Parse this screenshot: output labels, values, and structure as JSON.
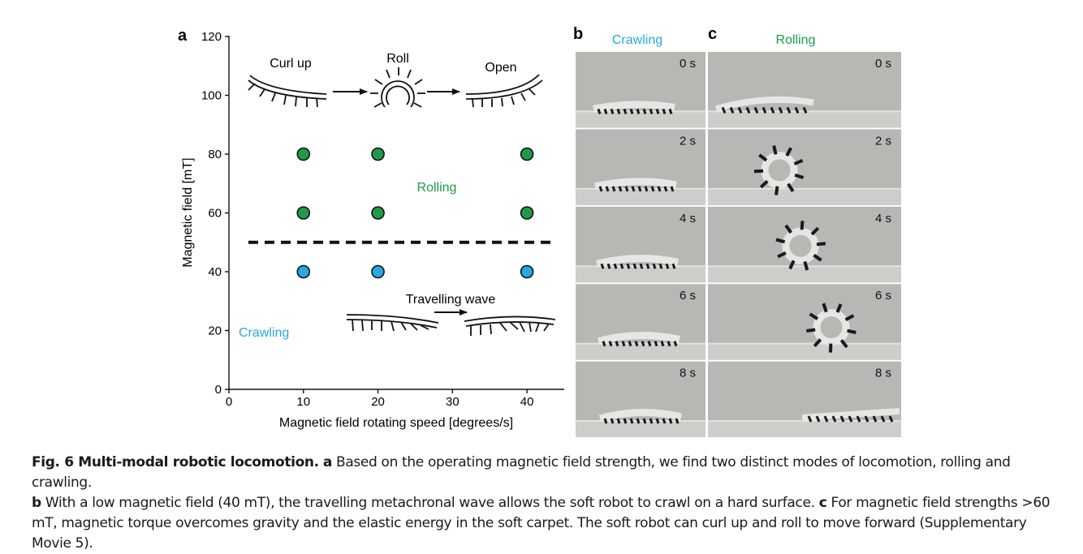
{
  "panels": {
    "a": {
      "letter": "a",
      "chart_data": {
        "type": "scatter",
        "xlabel": "Magnetic field rotating speed [degrees/s]",
        "ylabel": "Magnetic field [mT]",
        "xlim": [
          0,
          45
        ],
        "ylim": [
          0,
          120
        ],
        "x_ticks": [
          0,
          10,
          20,
          30,
          40
        ],
        "y_ticks": [
          0,
          20,
          40,
          60,
          80,
          100,
          120
        ],
        "series": [
          {
            "color": "#1f9a4a",
            "points": [
              [
                10,
                80
              ],
              [
                20,
                80
              ],
              [
                40,
                80
              ],
              [
                10,
                60
              ],
              [
                20,
                60
              ],
              [
                40,
                60
              ]
            ]
          },
          {
            "color": "#27a9e1",
            "points": [
              [
                10,
                40
              ],
              [
                20,
                40
              ],
              [
                40,
                40
              ]
            ]
          }
        ],
        "threshold_y": 50,
        "annotations": {
          "rolling": "Rolling",
          "crawling": "Crawling",
          "curl_up": "Curl up",
          "roll": "Roll",
          "open": "Open",
          "travelling_wave": "Travelling wave"
        },
        "colors": {
          "rolling": "#1f9a4a",
          "crawling": "#27a9e1"
        }
      }
    },
    "b": {
      "letter": "b",
      "title": "Crawling",
      "title_color": "#27a9e1",
      "times": [
        "0 s",
        "2 s",
        "4 s",
        "6 s",
        "8 s"
      ]
    },
    "c": {
      "letter": "c",
      "title": "Rolling",
      "title_color": "#1f9a4a",
      "times": [
        "0 s",
        "2 s",
        "4 s",
        "6 s",
        "8 s"
      ]
    }
  },
  "caption": {
    "fig_label": "Fig. 6 Multi-modal robotic locomotion.",
    "a_label": "a",
    "a_text": "Based on the operating magnetic field strength, we find two distinct modes of locomotion, rolling and crawling.",
    "b_label": "b",
    "b_text": "With a low magnetic field (40 mT), the travelling metachronal wave allows the soft robot to crawl on a hard surface.",
    "c_label": "c",
    "c_text": "For magnetic field strengths >60 mT, magnetic torque overcomes gravity and the elastic energy in the soft carpet. The soft robot can curl up and roll to move forward (Supplementary Movie 5)."
  }
}
